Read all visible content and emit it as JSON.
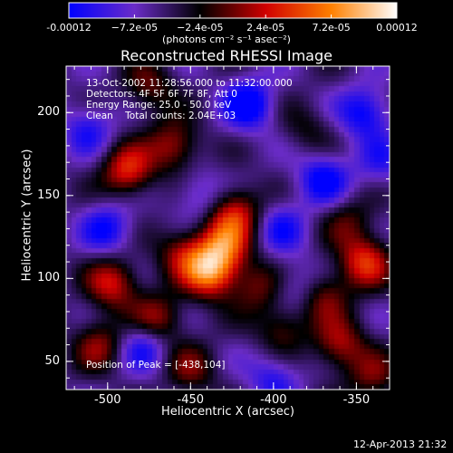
{
  "colorbar": {
    "ticks": [
      "-0.00012",
      "−7.2e-05",
      "−2.4e-05",
      "2.4e-05",
      "7.2e-05",
      "0.00012"
    ],
    "tick_values": [
      -0.00012,
      -7.2e-05,
      -2.4e-05,
      2.4e-05,
      7.2e-05,
      0.00012
    ],
    "units": "(photons cm⁻² s⁻¹ asec⁻²)",
    "colors": [
      "#0000ff",
      "#6a2cc8",
      "#000000",
      "#d00000",
      "#ff8000",
      "#ffffff"
    ]
  },
  "title": "Reconstructed RHESSI Image",
  "annotations": {
    "line1": "13-Oct-2002 11:28:56.000 to 11:32:00.000",
    "line2": "Detectors: 4F 5F 6F 7F 8F, Att 0",
    "line3": "Energy Range: 25.0 - 50.0 keV",
    "line4": "Clean    Total counts: 2.04E+03",
    "peak": "Position of Peak = [-438,104]"
  },
  "chart_data": {
    "type": "heatmap",
    "title": "Reconstructed RHESSI Image",
    "xlabel": "Heliocentric X (arcsec)",
    "ylabel": "Heliocentric Y (arcsec)",
    "xlim": [
      -525,
      -330
    ],
    "ylim": [
      33,
      228
    ],
    "xticks": [
      "-500",
      "-450",
      "-400",
      "-350"
    ],
    "xtick_values": [
      -500,
      -450,
      -400,
      -350
    ],
    "yticks": [
      "50",
      "100",
      "150",
      "200"
    ],
    "ytick_values": [
      50,
      100,
      150,
      200
    ],
    "peak_position": [
      -438,
      104
    ],
    "zlim": [
      -0.00012,
      0.00012
    ],
    "sources": [
      {
        "x": -438,
        "y": 104,
        "flux": 0.00012
      },
      {
        "x": -430,
        "y": 120,
        "flux": 9e-05
      },
      {
        "x": -423,
        "y": 140,
        "flux": 8e-05
      },
      {
        "x": -488,
        "y": 165,
        "flux": 9e-05
      },
      {
        "x": -460,
        "y": 180,
        "flux": 7e-05
      },
      {
        "x": -497,
        "y": 97,
        "flux": 8e-05
      },
      {
        "x": -470,
        "y": 75,
        "flux": 7e-05
      },
      {
        "x": -455,
        "y": 115,
        "flux": 6e-05
      },
      {
        "x": -505,
        "y": 60,
        "flux": 6e-05
      },
      {
        "x": -370,
        "y": 90,
        "flux": 6e-05
      },
      {
        "x": -345,
        "y": 110,
        "flux": 9e-05
      },
      {
        "x": -360,
        "y": 60,
        "flux": 7e-05
      },
      {
        "x": -395,
        "y": 70,
        "flux": 5e-05
      },
      {
        "x": -450,
        "y": 45,
        "flux": 5e-05
      },
      {
        "x": -340,
        "y": 40,
        "flux": 5e-05
      },
      {
        "x": -355,
        "y": 135,
        "flux": 4e-05
      },
      {
        "x": -475,
        "y": 215,
        "flux": 5e-05
      },
      {
        "x": -410,
        "y": 95,
        "flux": 5e-05
      },
      {
        "x": -380,
        "y": 190,
        "flux": 3e-05
      }
    ],
    "sinks": [
      {
        "x": -415,
        "y": 205,
        "flux": -8e-05
      },
      {
        "x": -370,
        "y": 160,
        "flux": -7e-05
      },
      {
        "x": -500,
        "y": 130,
        "flux": -6e-05
      },
      {
        "x": -345,
        "y": 200,
        "flux": -7e-05
      },
      {
        "x": -478,
        "y": 60,
        "flux": -6e-05
      },
      {
        "x": -400,
        "y": 40,
        "flux": -5e-05
      },
      {
        "x": -395,
        "y": 130,
        "flux": -5e-05
      },
      {
        "x": -445,
        "y": 150,
        "flux": -4e-05
      },
      {
        "x": -512,
        "y": 190,
        "flux": -5e-05
      },
      {
        "x": -385,
        "y": 95,
        "flux": -4e-05
      },
      {
        "x": -335,
        "y": 170,
        "flux": -4e-05
      }
    ]
  },
  "footer": {
    "timestamp": "12-Apr-2013 21:32"
  }
}
